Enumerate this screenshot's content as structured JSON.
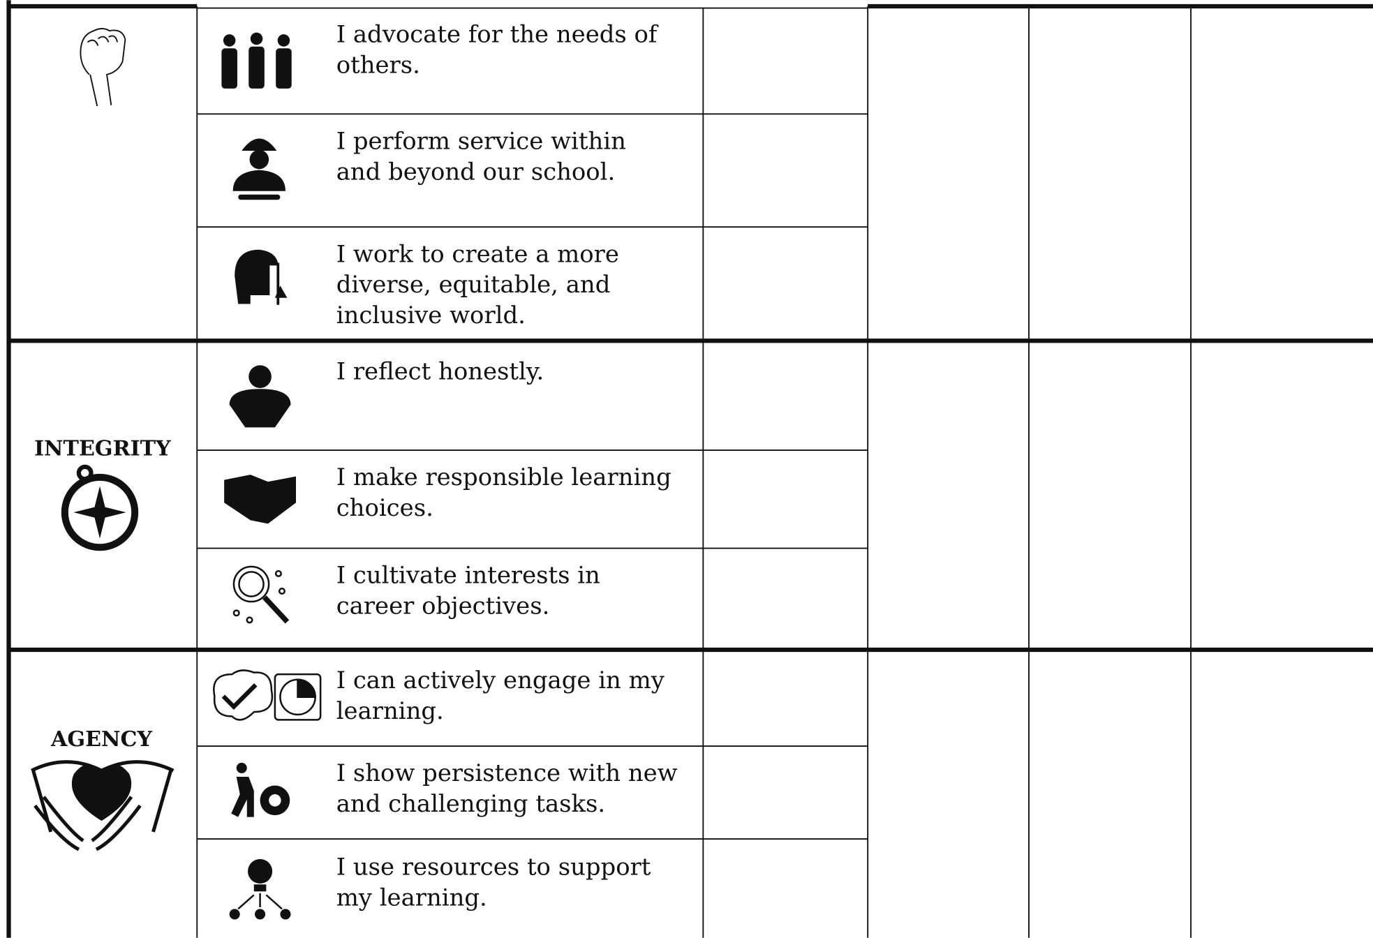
{
  "table": {
    "sections": [
      {
        "rows": [
          {
            "statement": [
              "I advocate for the needs of",
              "others."
            ]
          },
          {
            "statement": [
              "I perform service within",
              "and beyond our school."
            ]
          },
          {
            "statement": [
              "I work to create a more",
              "diverse, equitable, and",
              "inclusive world."
            ]
          }
        ]
      },
      {
        "label": "INTEGRITY",
        "rows": [
          {
            "statement": [
              "I reflect honestly."
            ]
          },
          {
            "statement": [
              "I make responsible learning",
              "choices."
            ]
          },
          {
            "statement": [
              "I cultivate interests in",
              "career objectives."
            ]
          }
        ]
      },
      {
        "label": "AGENCY",
        "rows": [
          {
            "statement": [
              "I can actively engage in my",
              "learning."
            ]
          },
          {
            "statement": [
              "I show persistence with new",
              "and challenging tasks."
            ]
          },
          {
            "statement": [
              "I use resources to support",
              "my learning."
            ]
          }
        ]
      }
    ]
  }
}
